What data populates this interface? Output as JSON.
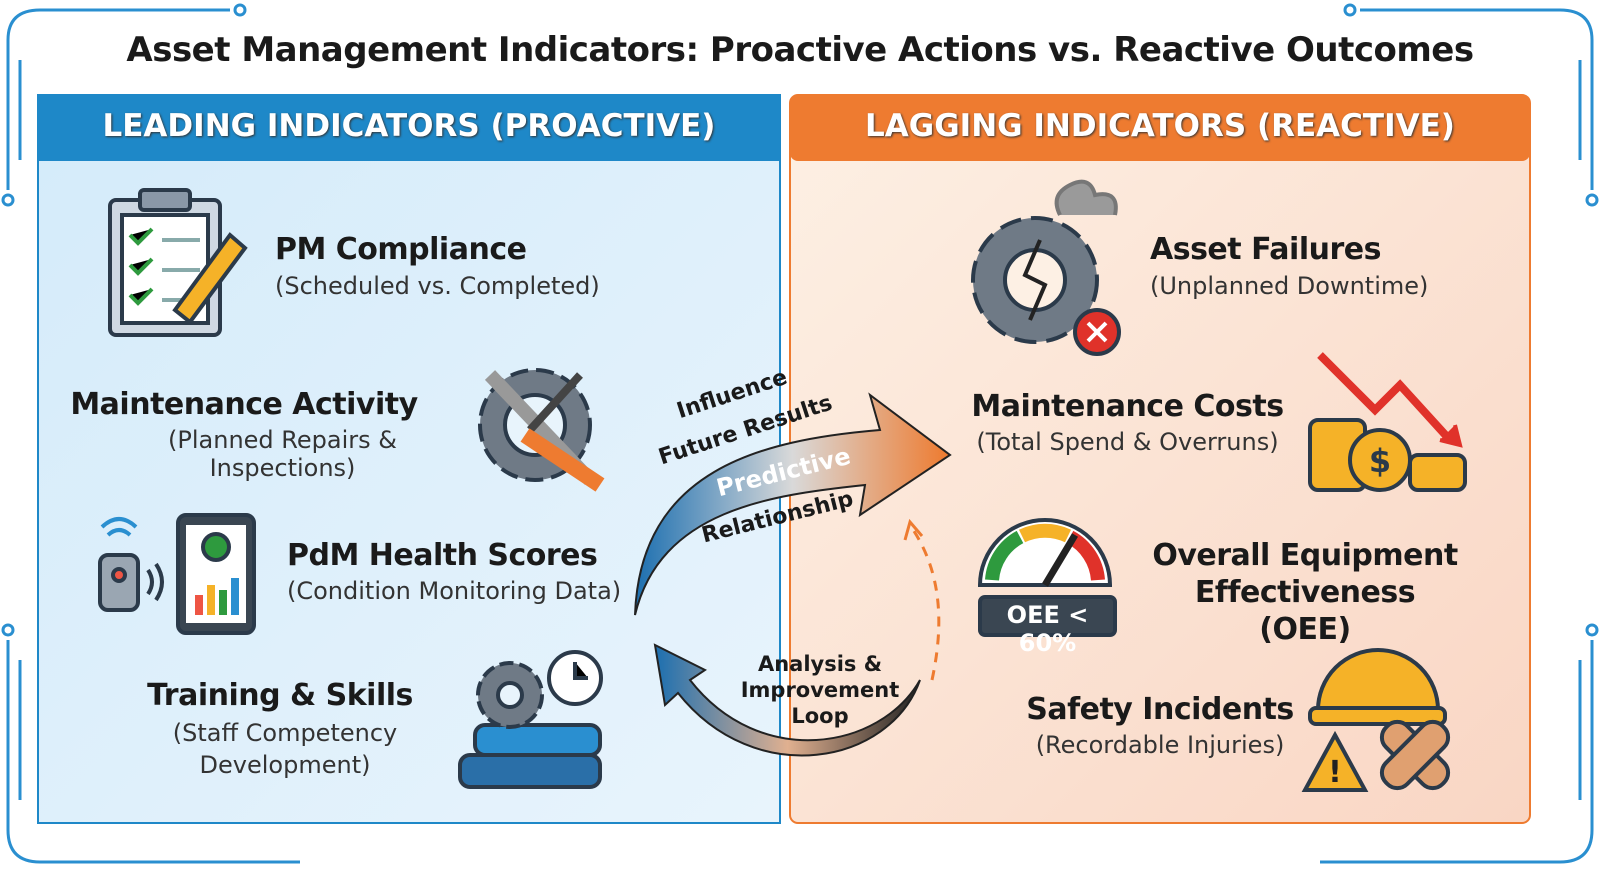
{
  "title": "Asset Management Indicators: Proactive Actions vs. Reactive Outcomes",
  "leading": {
    "header": "LEADING INDICATORS (PROACTIVE)",
    "items": [
      {
        "title": "PM Compliance",
        "subtitle": "(Scheduled vs. Completed)"
      },
      {
        "title": "Maintenance Activity",
        "subtitle": "(Planned Repairs & Inspections)"
      },
      {
        "title": "PdM Health Scores",
        "subtitle": "(Condition Monitoring Data)"
      },
      {
        "title": "Training & Skills",
        "subtitle": "(Staff Competency Development)"
      }
    ]
  },
  "lagging": {
    "header": "LAGGING INDICATORS (REACTIVE)",
    "items": [
      {
        "title": "Asset Failures",
        "subtitle": "(Unplanned Downtime)"
      },
      {
        "title": "Maintenance Costs",
        "subtitle": "(Total Spend & Overruns)"
      },
      {
        "title": "Overall Equipment Effectiveness (OEE)"
      },
      {
        "title": "Safety Incidents",
        "subtitle": "(Recordable Injuries)"
      }
    ]
  },
  "gauge_label": "OEE < 60%",
  "forward_arrow": {
    "lines": [
      "Influence",
      "Future Results",
      "Predictive",
      "Relationship"
    ]
  },
  "feedback_arrow": {
    "lines": [
      "Analysis &",
      "Improvement",
      "Loop"
    ]
  }
}
